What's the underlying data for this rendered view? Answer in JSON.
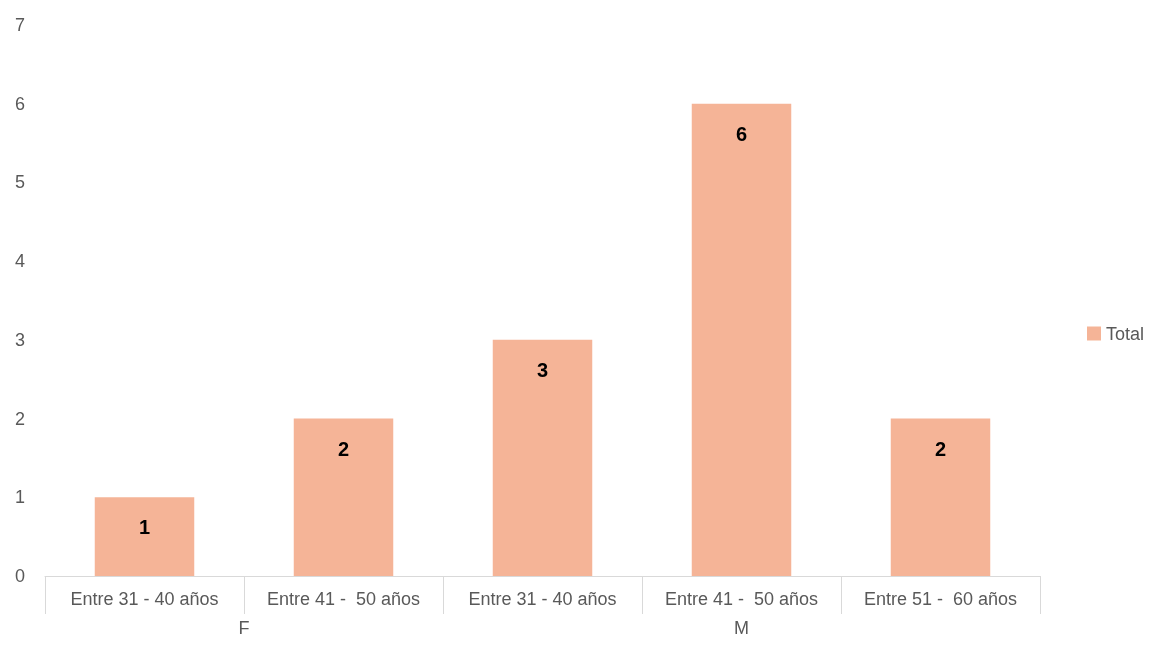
{
  "chart_data": {
    "type": "bar",
    "categories": [
      "Entre 31 - 40 años",
      "Entre 41 -  50 años",
      "Entre 31 - 40 años",
      "Entre 41 -  50 años",
      "Entre 51 -  60 años"
    ],
    "series": [
      {
        "name": "Total",
        "color": "#f5b497",
        "values": [
          1,
          2,
          3,
          6,
          2
        ]
      }
    ],
    "ylim": [
      0,
      7
    ],
    "yticks": [
      0,
      1,
      2,
      3,
      4,
      5,
      6,
      7
    ],
    "grid": false,
    "legend": "right",
    "data_labels": true,
    "annotations": [
      "F",
      "M"
    ]
  }
}
